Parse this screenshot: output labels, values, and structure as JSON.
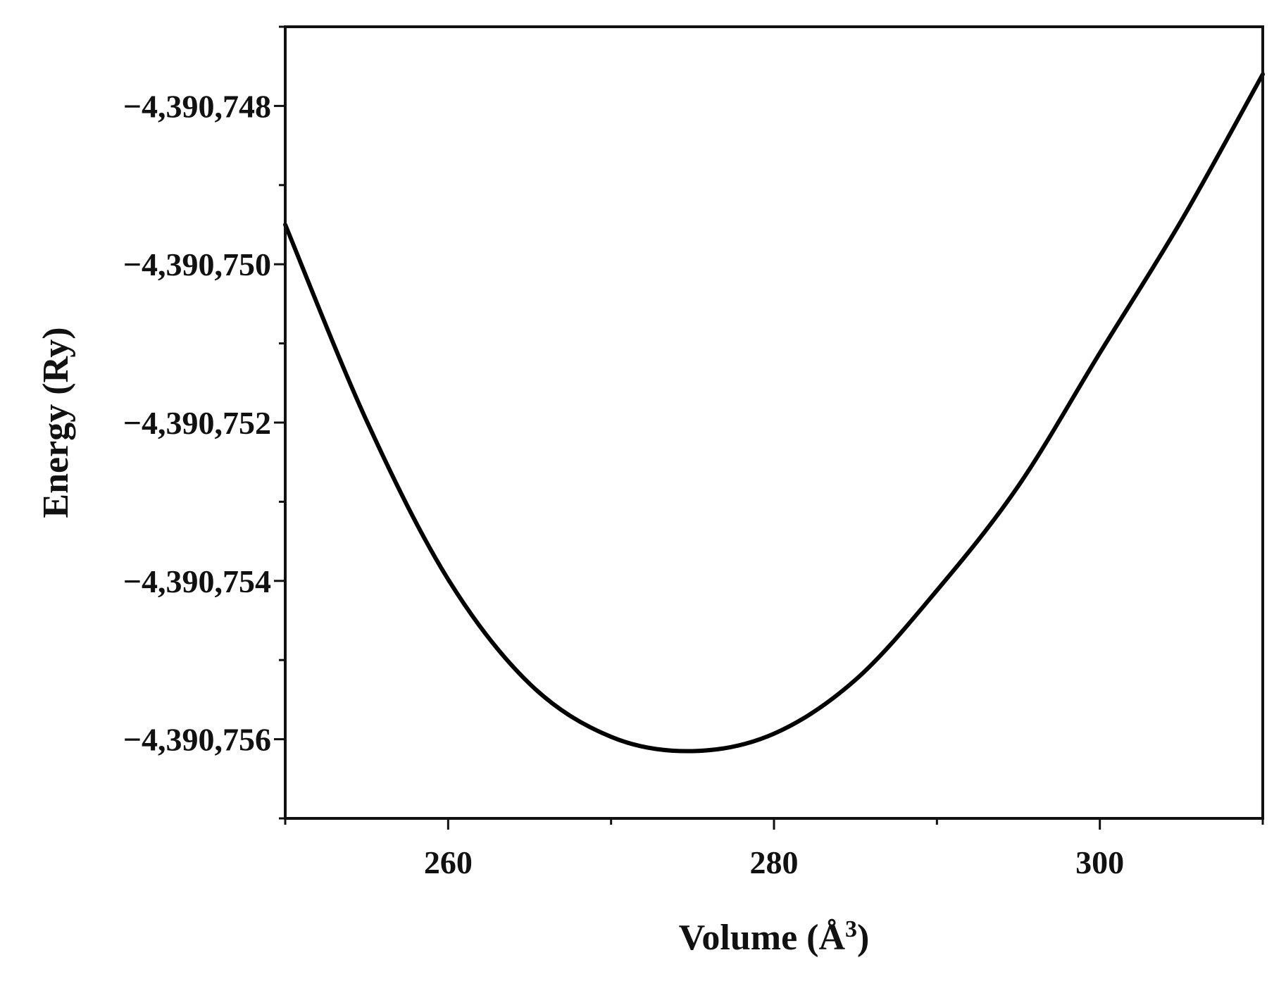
{
  "chart_data": {
    "type": "line",
    "title": "",
    "xlabel": "Volume (Å",
    "xlabel_sup": "3",
    "xlabel_close": ")",
    "ylabel": "Energy (Ry)",
    "xlim": [
      250,
      310
    ],
    "ylim": [
      -4390757.0,
      -4390747.0
    ],
    "x_major_ticks": [
      260,
      280,
      300
    ],
    "x_minor_ticks": [
      250,
      270,
      290,
      310
    ],
    "x_tick_labels": [
      "260",
      "280",
      "300"
    ],
    "y_major_ticks": [
      -4390748,
      -4390750,
      -4390752,
      -4390754,
      -4390756
    ],
    "y_minor_ticks": [
      -4390747,
      -4390749,
      -4390751,
      -4390753,
      -4390755,
      -4390757
    ],
    "y_tick_labels": [
      "−4,390,748",
      "−4,390,750",
      "−4,390,752",
      "−4,390,754",
      "−4,390,756"
    ],
    "grid": false,
    "legend": "none",
    "line_color": "#000000",
    "series": [
      {
        "x": [
          250,
          255,
          260,
          265,
          270,
          275,
          280,
          285,
          290,
          295,
          300,
          305,
          310
        ],
        "y": [
          -4390749.5,
          -4390751.98,
          -4390753.98,
          -4390755.3,
          -4390755.97,
          -4390756.15,
          -4390755.93,
          -4390755.25,
          -4390754.12,
          -4390752.8,
          -4390751.12,
          -4390749.45,
          -4390747.6
        ]
      }
    ]
  }
}
